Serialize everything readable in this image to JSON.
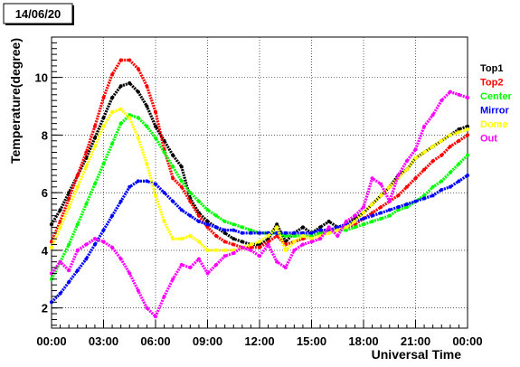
{
  "chart_data": {
    "type": "scatter",
    "title": "14/06/20",
    "xlabel": "Universal Time",
    "ylabel": "Temperature(degree)",
    "xlim": [
      0,
      24
    ],
    "ylim": [
      1.3,
      11.4
    ],
    "x_ticks": [
      0,
      3,
      6,
      9,
      12,
      15,
      18,
      21,
      24
    ],
    "x_tick_labels": [
      "00:00",
      "03:00",
      "06:00",
      "09:00",
      "12:00",
      "15:00",
      "18:00",
      "21:00",
      "00:00"
    ],
    "y_ticks": [
      2,
      4,
      6,
      8,
      10
    ],
    "y_tick_labels": [
      "2",
      "4",
      "6",
      "8",
      "10"
    ],
    "grid": true,
    "legend_placement": "right",
    "series": [
      {
        "name": "Top1",
        "color": "#000000",
        "x": [
          0,
          0.5,
          1,
          1.5,
          2,
          2.5,
          3,
          3.5,
          4,
          4.5,
          5,
          5.5,
          6,
          6.5,
          7,
          7.5,
          8,
          8.5,
          9,
          9.5,
          10,
          10.5,
          11,
          11.5,
          12,
          12.5,
          13,
          13.5,
          14,
          14.5,
          15,
          15.5,
          16,
          16.5,
          17,
          17.5,
          18,
          18.5,
          19,
          19.5,
          20,
          20.5,
          21,
          21.5,
          22,
          22.5,
          23,
          23.5,
          24
        ],
        "y": [
          4.9,
          5.4,
          6.0,
          6.6,
          7.2,
          7.9,
          8.6,
          9.3,
          9.7,
          9.8,
          9.5,
          9.0,
          8.3,
          7.8,
          7.3,
          6.9,
          5.8,
          5.3,
          5.0,
          4.8,
          4.6,
          4.4,
          4.3,
          4.2,
          4.2,
          4.4,
          4.9,
          4.3,
          4.6,
          4.8,
          4.6,
          4.8,
          5.0,
          4.8,
          4.9,
          5.1,
          5.3,
          5.6,
          5.9,
          6.2,
          6.6,
          6.8,
          7.2,
          7.4,
          7.6,
          7.8,
          8.0,
          8.2,
          8.3
        ]
      },
      {
        "name": "Top2",
        "color": "#ff0000",
        "x": [
          0,
          0.5,
          1,
          1.5,
          2,
          2.5,
          3,
          3.5,
          4,
          4.5,
          5,
          5.5,
          6,
          6.5,
          7,
          7.5,
          8,
          8.5,
          9,
          9.5,
          10,
          10.5,
          11,
          11.5,
          12,
          12.5,
          13,
          13.5,
          14,
          14.5,
          15,
          15.5,
          16,
          16.5,
          17,
          17.5,
          18,
          18.5,
          19,
          19.5,
          20,
          20.5,
          21,
          21.5,
          22,
          22.5,
          23,
          23.5,
          24
        ],
        "y": [
          4.3,
          5.0,
          5.8,
          6.6,
          7.4,
          8.3,
          9.3,
          10.1,
          10.6,
          10.6,
          10.3,
          9.7,
          8.8,
          7.5,
          6.5,
          6.2,
          5.7,
          5.2,
          4.8,
          4.5,
          4.3,
          4.2,
          4.1,
          4.1,
          4.1,
          4.3,
          4.5,
          4.2,
          4.3,
          4.4,
          4.5,
          4.6,
          4.7,
          4.7,
          4.8,
          4.9,
          5.1,
          5.3,
          5.5,
          5.7,
          5.9,
          6.2,
          6.5,
          6.8,
          7.1,
          7.3,
          7.6,
          7.8,
          8.0
        ]
      },
      {
        "name": "Center",
        "color": "#00ff00",
        "x": [
          0,
          0.5,
          1,
          1.5,
          2,
          2.5,
          3,
          3.5,
          4,
          4.5,
          5,
          5.5,
          6,
          6.5,
          7,
          7.5,
          8,
          8.5,
          9,
          9.5,
          10,
          10.5,
          11,
          11.5,
          12,
          12.5,
          13,
          13.5,
          14,
          14.5,
          15,
          15.5,
          16,
          16.5,
          17,
          17.5,
          18,
          18.5,
          19,
          19.5,
          20,
          20.5,
          21,
          21.5,
          22,
          22.5,
          23,
          23.5,
          24
        ],
        "y": [
          3.0,
          3.6,
          4.2,
          4.9,
          5.6,
          6.3,
          7.0,
          7.7,
          8.4,
          8.7,
          8.6,
          8.3,
          7.9,
          7.4,
          6.9,
          6.4,
          6.0,
          5.7,
          5.4,
          5.2,
          5.0,
          4.9,
          4.8,
          4.7,
          4.6,
          4.6,
          4.6,
          4.5,
          4.5,
          4.5,
          4.5,
          4.6,
          4.6,
          4.7,
          4.7,
          4.8,
          4.9,
          5.0,
          5.1,
          5.2,
          5.4,
          5.5,
          5.7,
          5.9,
          6.2,
          6.4,
          6.7,
          7.0,
          7.3
        ]
      },
      {
        "name": "Mirror",
        "color": "#0000ff",
        "x": [
          0,
          0.5,
          1,
          1.5,
          2,
          2.5,
          3,
          3.5,
          4,
          4.5,
          5,
          5.5,
          6,
          6.5,
          7,
          7.5,
          8,
          8.5,
          9,
          9.5,
          10,
          10.5,
          11,
          11.5,
          12,
          12.5,
          13,
          13.5,
          14,
          14.5,
          15,
          15.5,
          16,
          16.5,
          17,
          17.5,
          18,
          18.5,
          19,
          19.5,
          20,
          20.5,
          21,
          21.5,
          22,
          22.5,
          23,
          23.5,
          24
        ],
        "y": [
          2.2,
          2.5,
          2.9,
          3.3,
          3.7,
          4.2,
          4.7,
          5.2,
          5.7,
          6.2,
          6.4,
          6.4,
          6.3,
          6.0,
          5.7,
          5.4,
          5.2,
          5.0,
          4.9,
          4.8,
          4.7,
          4.7,
          4.6,
          4.6,
          4.6,
          4.6,
          4.6,
          4.6,
          4.6,
          4.6,
          4.6,
          4.7,
          4.7,
          4.8,
          4.9,
          5.0,
          5.1,
          5.2,
          5.3,
          5.4,
          5.5,
          5.6,
          5.7,
          5.8,
          5.9,
          6.1,
          6.2,
          6.4,
          6.6
        ]
      },
      {
        "name": "Dome",
        "color": "#ffff00",
        "x": [
          0,
          0.5,
          1,
          1.5,
          2,
          2.5,
          3,
          3.5,
          4,
          4.5,
          5,
          5.5,
          6,
          6.5,
          7,
          7.5,
          8,
          8.5,
          9,
          9.5,
          10,
          10.5,
          11,
          11.5,
          12,
          12.5,
          13,
          13.5,
          14,
          14.5,
          15,
          15.5,
          16,
          16.5,
          17,
          17.5,
          18,
          18.5,
          19,
          19.5,
          20,
          20.5,
          21,
          21.5,
          22,
          22.5,
          23,
          23.5,
          24
        ],
        "y": [
          4.1,
          4.8,
          5.5,
          6.2,
          6.9,
          7.6,
          8.3,
          8.8,
          8.9,
          8.6,
          7.9,
          7.0,
          5.9,
          5.0,
          4.4,
          4.4,
          4.5,
          4.3,
          4.0,
          4.0,
          4.0,
          4.0,
          4.1,
          4.2,
          4.3,
          4.5,
          4.8,
          4.0,
          4.3,
          4.5,
          4.4,
          4.5,
          4.6,
          4.7,
          4.8,
          5.0,
          5.3,
          5.6,
          5.9,
          6.2,
          6.5,
          6.8,
          7.2,
          7.4,
          7.6,
          7.8,
          8.0,
          8.1,
          8.2
        ]
      },
      {
        "name": "Out",
        "color": "#ff00ff",
        "x": [
          0,
          0.5,
          1,
          1.5,
          2,
          2.5,
          3,
          3.5,
          4,
          4.5,
          5,
          5.5,
          6,
          6.5,
          7,
          7.5,
          8,
          8.5,
          9,
          9.5,
          10,
          10.5,
          11,
          11.5,
          12,
          12.5,
          13,
          13.5,
          14,
          14.5,
          15,
          15.5,
          16,
          16.5,
          17,
          17.5,
          18,
          18.5,
          19,
          19.5,
          20,
          20.5,
          21,
          21.5,
          22,
          22.5,
          23,
          23.5,
          24
        ],
        "y": [
          3.2,
          3.6,
          3.3,
          4.0,
          4.2,
          4.4,
          4.3,
          4.1,
          3.7,
          3.2,
          2.6,
          2.0,
          1.7,
          2.4,
          3.0,
          3.5,
          3.4,
          3.7,
          3.2,
          3.5,
          3.8,
          3.9,
          4.1,
          4.0,
          3.8,
          4.2,
          3.6,
          3.4,
          4.0,
          4.2,
          4.3,
          4.4,
          4.8,
          4.5,
          5.0,
          5.2,
          5.5,
          6.5,
          6.3,
          5.7,
          6.6,
          7.1,
          7.5,
          8.3,
          8.7,
          9.2,
          9.5,
          9.4,
          9.3
        ]
      }
    ]
  }
}
